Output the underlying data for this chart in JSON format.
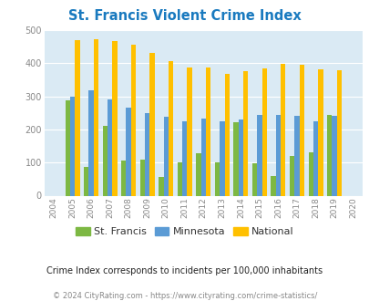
{
  "title": "St. Francis Violent Crime Index",
  "years": [
    2004,
    2005,
    2006,
    2007,
    2008,
    2009,
    2010,
    2011,
    2012,
    2013,
    2014,
    2015,
    2016,
    2017,
    2018,
    2019,
    2020
  ],
  "st_francis": [
    null,
    288,
    88,
    210,
    105,
    108,
    57,
    100,
    127,
    100,
    222,
    97,
    60,
    121,
    132,
    245,
    null
  ],
  "minnesota": [
    null,
    298,
    318,
    292,
    265,
    248,
    238,
    224,
    234,
    224,
    230,
    244,
    245,
    240,
    224,
    240,
    null
  ],
  "national": [
    null,
    469,
    473,
    467,
    455,
    432,
    405,
    387,
    387,
    368,
    377,
    383,
    398,
    394,
    381,
    379,
    null
  ],
  "st_francis_color": "#7db843",
  "minnesota_color": "#5b9bd5",
  "national_color": "#ffc000",
  "fig_bg_color": "#ffffff",
  "plot_bg_color": "#daeaf4",
  "yticks": [
    0,
    100,
    200,
    300,
    400,
    500
  ],
  "subtitle": "Crime Index corresponds to incidents per 100,000 inhabitants",
  "footer": "© 2024 CityRating.com - https://www.cityrating.com/crime-statistics/",
  "legend_labels": [
    "St. Francis",
    "Minnesota",
    "National"
  ],
  "title_color": "#1a7abf",
  "subtitle_color": "#222222",
  "footer_color": "#888888",
  "tick_color": "#888888"
}
